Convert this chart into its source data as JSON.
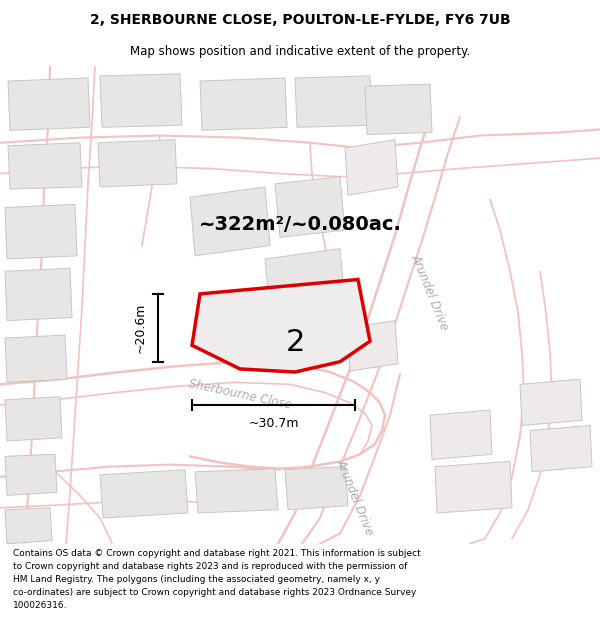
{
  "title_line1": "2, SHERBOURNE CLOSE, POULTON-LE-FYLDE, FY6 7UB",
  "title_line2": "Map shows position and indicative extent of the property.",
  "footer_text": "Contains OS data © Crown copyright and database right 2021. This information is subject to Crown copyright and database rights 2023 and is reproduced with the permission of HM Land Registry. The polygons (including the associated geometry, namely x, y co-ordinates) are subject to Crown copyright and database rights 2023 Ordnance Survey 100026316.",
  "map_bg": "#f9f7f7",
  "building_fill": "#e8e5e5",
  "building_edge": "#c8c5c5",
  "road_color": "#f5c0c0",
  "highlight_edge": "#dd0000",
  "highlight_fill": "#eeecec",
  "area_text": "~322m²/~0.080ac.",
  "label_number": "2",
  "dim_width": "~30.7m",
  "dim_height": "~20.6m",
  "street_label_sherbourne": "Sherbourne Close",
  "street_label_arundel": "Arundel Drive",
  "street_label_arundel2": "Arundel Drive"
}
